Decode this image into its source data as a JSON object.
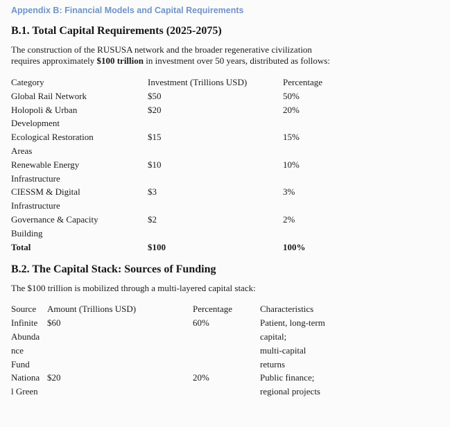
{
  "page": {
    "accent_color": "#6f94c8",
    "appendix_title": "Appendix B: Financial Models and Capital Requirements"
  },
  "sections": {
    "b1": {
      "title": "B.1. Total Capital Requirements (2025-2075)",
      "paragraph": {
        "line1": "The construction of the RUSUSA network and the broader regenerative civilization",
        "line2_pre": "requires approximately ",
        "line2_bold": "$100 trillion",
        "line2_post": " in investment over 50 years, distributed as follows:"
      },
      "table": {
        "headers": [
          "Category",
          "Investment (Trillions USD)",
          "Percentage"
        ],
        "rows": [
          {
            "category": "Global Rail Network",
            "investment": "$50",
            "percentage": "50%"
          },
          {
            "category": "Holopoli & Urban\nDevelopment",
            "investment": "$20",
            "percentage": "20%"
          },
          {
            "category": "Ecological Restoration\nAreas",
            "investment": "$15",
            "percentage": "15%"
          },
          {
            "category": "Renewable Energy\nInfrastructure",
            "investment": "$10",
            "percentage": "10%"
          },
          {
            "category": "CIESSM & Digital\nInfrastructure",
            "investment": "$3",
            "percentage": "3%"
          },
          {
            "category": "Governance & Capacity\nBuilding",
            "investment": "$2",
            "percentage": "2%"
          },
          {
            "category": "Total",
            "investment": "$100",
            "percentage": "100%"
          }
        ]
      }
    },
    "b2": {
      "title": "B.2. The Capital Stack: Sources of Funding",
      "paragraph": "The $100 trillion is mobilized through a multi-layered capital stack:",
      "table": {
        "headers": [
          "Source",
          "Amount (Trillions USD)",
          "Percentage",
          "Characteristics"
        ],
        "rows": [
          {
            "source": "Infinite\nAbunda\nnce\nFund",
            "amount": "$60",
            "percentage": "60%",
            "characteristics": "Patient, long-term\ncapital;\nmulti-capital\nreturns"
          },
          {
            "source": "Nationa\nl Green",
            "amount": "$20",
            "percentage": "20%",
            "characteristics": "Public finance;\nregional projects"
          }
        ]
      }
    }
  }
}
